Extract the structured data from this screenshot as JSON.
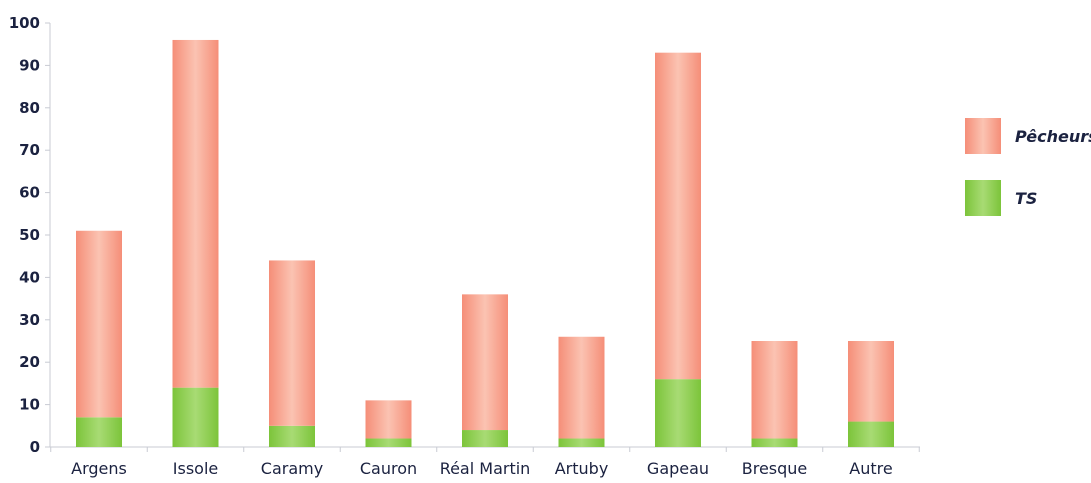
{
  "chart_data": {
    "type": "bar",
    "stacked": true,
    "categories": [
      "Argens",
      "Issole",
      "Caramy",
      "Cauron",
      "Réal Martin",
      "Artuby",
      "Gapeau",
      "Bresque",
      "Autre"
    ],
    "series": [
      {
        "name": "TS",
        "color": "#8fd14f",
        "values": [
          7,
          14,
          5,
          2,
          4,
          2,
          16,
          2,
          6
        ]
      },
      {
        "name": "Pêcheurs",
        "color": "#f7a08c",
        "values": [
          44,
          82,
          39,
          9,
          32,
          24,
          77,
          23,
          19
        ]
      }
    ],
    "ylim": [
      0,
      100
    ],
    "yticks": [
      0,
      10,
      20,
      30,
      40,
      50,
      60,
      70,
      80,
      90,
      100
    ],
    "legend": {
      "position": "right",
      "order": [
        "Pêcheurs",
        "TS"
      ]
    },
    "grid": false
  }
}
